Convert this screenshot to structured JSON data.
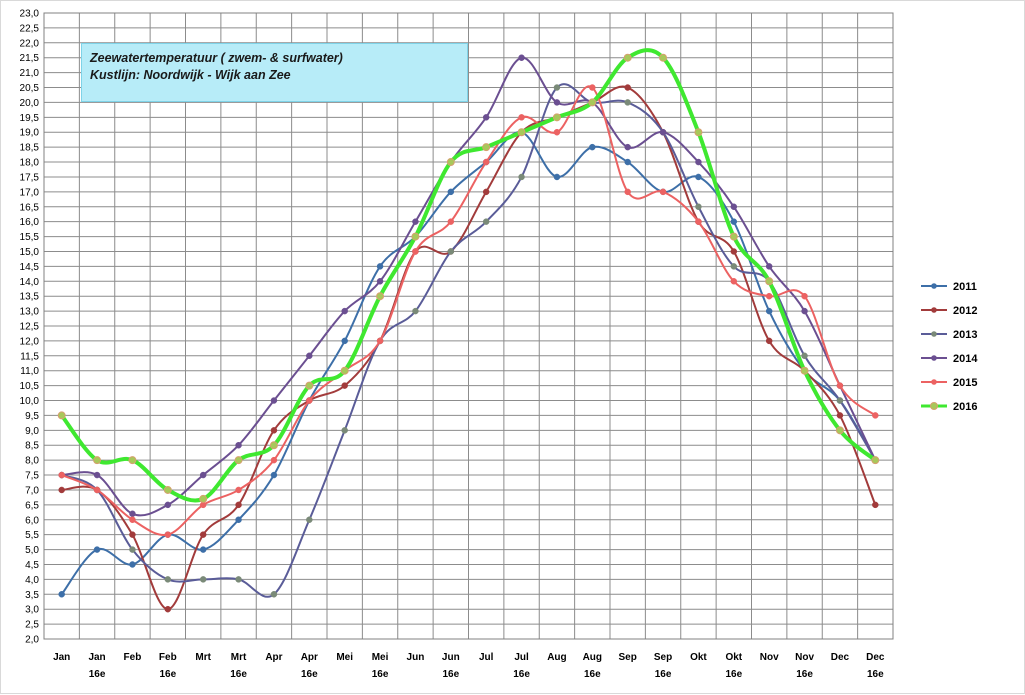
{
  "chart_data": {
    "type": "line",
    "title": "Zeewatertemperatuur ( zwem- & surfwater)",
    "subtitle": "Kustlijn: Noordwijk - Wijk aan Zee",
    "xlabel": "",
    "ylabel": "",
    "ylim": [
      2.0,
      23.0
    ],
    "ystep": 0.5,
    "grid": true,
    "legend_position": "right",
    "categories": [
      [
        "Jan",
        ""
      ],
      [
        "Jan",
        "16e"
      ],
      [
        "Feb",
        ""
      ],
      [
        "Feb",
        "16e"
      ],
      [
        "Mrt",
        ""
      ],
      [
        "Mrt",
        "16e"
      ],
      [
        "Apr",
        ""
      ],
      [
        "Apr",
        "16e"
      ],
      [
        "Mei",
        ""
      ],
      [
        "Mei",
        "16e"
      ],
      [
        "Jun",
        ""
      ],
      [
        "Jun",
        "16e"
      ],
      [
        "Jul",
        ""
      ],
      [
        "Jul",
        "16e"
      ],
      [
        "Aug",
        ""
      ],
      [
        "Aug",
        "16e"
      ],
      [
        "Sep",
        ""
      ],
      [
        "Sep",
        "16e"
      ],
      [
        "Okt",
        ""
      ],
      [
        "Okt",
        "16e"
      ],
      [
        "Nov",
        ""
      ],
      [
        "Nov",
        "16e"
      ],
      [
        "Dec",
        ""
      ],
      [
        "Dec",
        "16e"
      ]
    ],
    "series": [
      {
        "name": "2011",
        "color": "#3d6fa8",
        "values": [
          3.5,
          5.0,
          4.5,
          5.5,
          5.0,
          6.0,
          7.5,
          10.0,
          12.0,
          14.5,
          15.5,
          17.0,
          18.0,
          19.0,
          17.5,
          18.5,
          18.0,
          17.0,
          17.5,
          16.0,
          13.0,
          11.0,
          10.0,
          8.0
        ]
      },
      {
        "name": "2012",
        "color": "#a23b3b",
        "values": [
          7.0,
          7.0,
          5.5,
          3.0,
          5.5,
          6.5,
          9.0,
          10.0,
          10.5,
          12.0,
          15.0,
          15.0,
          17.0,
          19.0,
          19.5,
          20.0,
          20.5,
          19.0,
          16.0,
          15.0,
          12.0,
          11.0,
          9.5,
          6.5
        ]
      },
      {
        "name": "2013",
        "color": "#5a5c98",
        "marker": "#7a8a78",
        "values": [
          7.5,
          7.0,
          5.0,
          4.0,
          4.0,
          4.0,
          3.5,
          6.0,
          9.0,
          12.0,
          13.0,
          15.0,
          16.0,
          17.5,
          20.5,
          20.0,
          20.0,
          19.0,
          16.5,
          14.5,
          14.0,
          11.5,
          10.0,
          8.0
        ]
      },
      {
        "name": "2014",
        "color": "#6b4f91",
        "values": [
          7.5,
          7.5,
          6.2,
          6.5,
          7.5,
          8.5,
          10.0,
          11.5,
          13.0,
          14.0,
          16.0,
          18.0,
          19.5,
          21.5,
          20.0,
          20.0,
          18.5,
          19.0,
          18.0,
          16.5,
          14.5,
          13.0,
          10.5,
          8.0
        ]
      },
      {
        "name": "2015",
        "color": "#ec6262",
        "values": [
          7.5,
          7.0,
          6.0,
          5.5,
          6.5,
          7.0,
          8.0,
          10.0,
          11.0,
          12.0,
          15.0,
          16.0,
          18.0,
          19.5,
          19.0,
          20.5,
          17.0,
          17.0,
          16.0,
          14.0,
          13.5,
          13.5,
          10.5,
          9.5
        ]
      },
      {
        "name": "2016",
        "color": "#3fe830",
        "marker": "#a8c85a",
        "values": [
          9.5,
          8.0,
          8.0,
          7.0,
          6.7,
          8.0,
          8.5,
          10.5,
          11.0,
          13.5,
          15.5,
          18.0,
          18.5,
          19.0,
          19.5,
          20.0,
          21.5,
          21.5,
          19.0,
          15.5,
          14.0,
          11.0,
          9.0,
          8.0
        ]
      }
    ]
  }
}
